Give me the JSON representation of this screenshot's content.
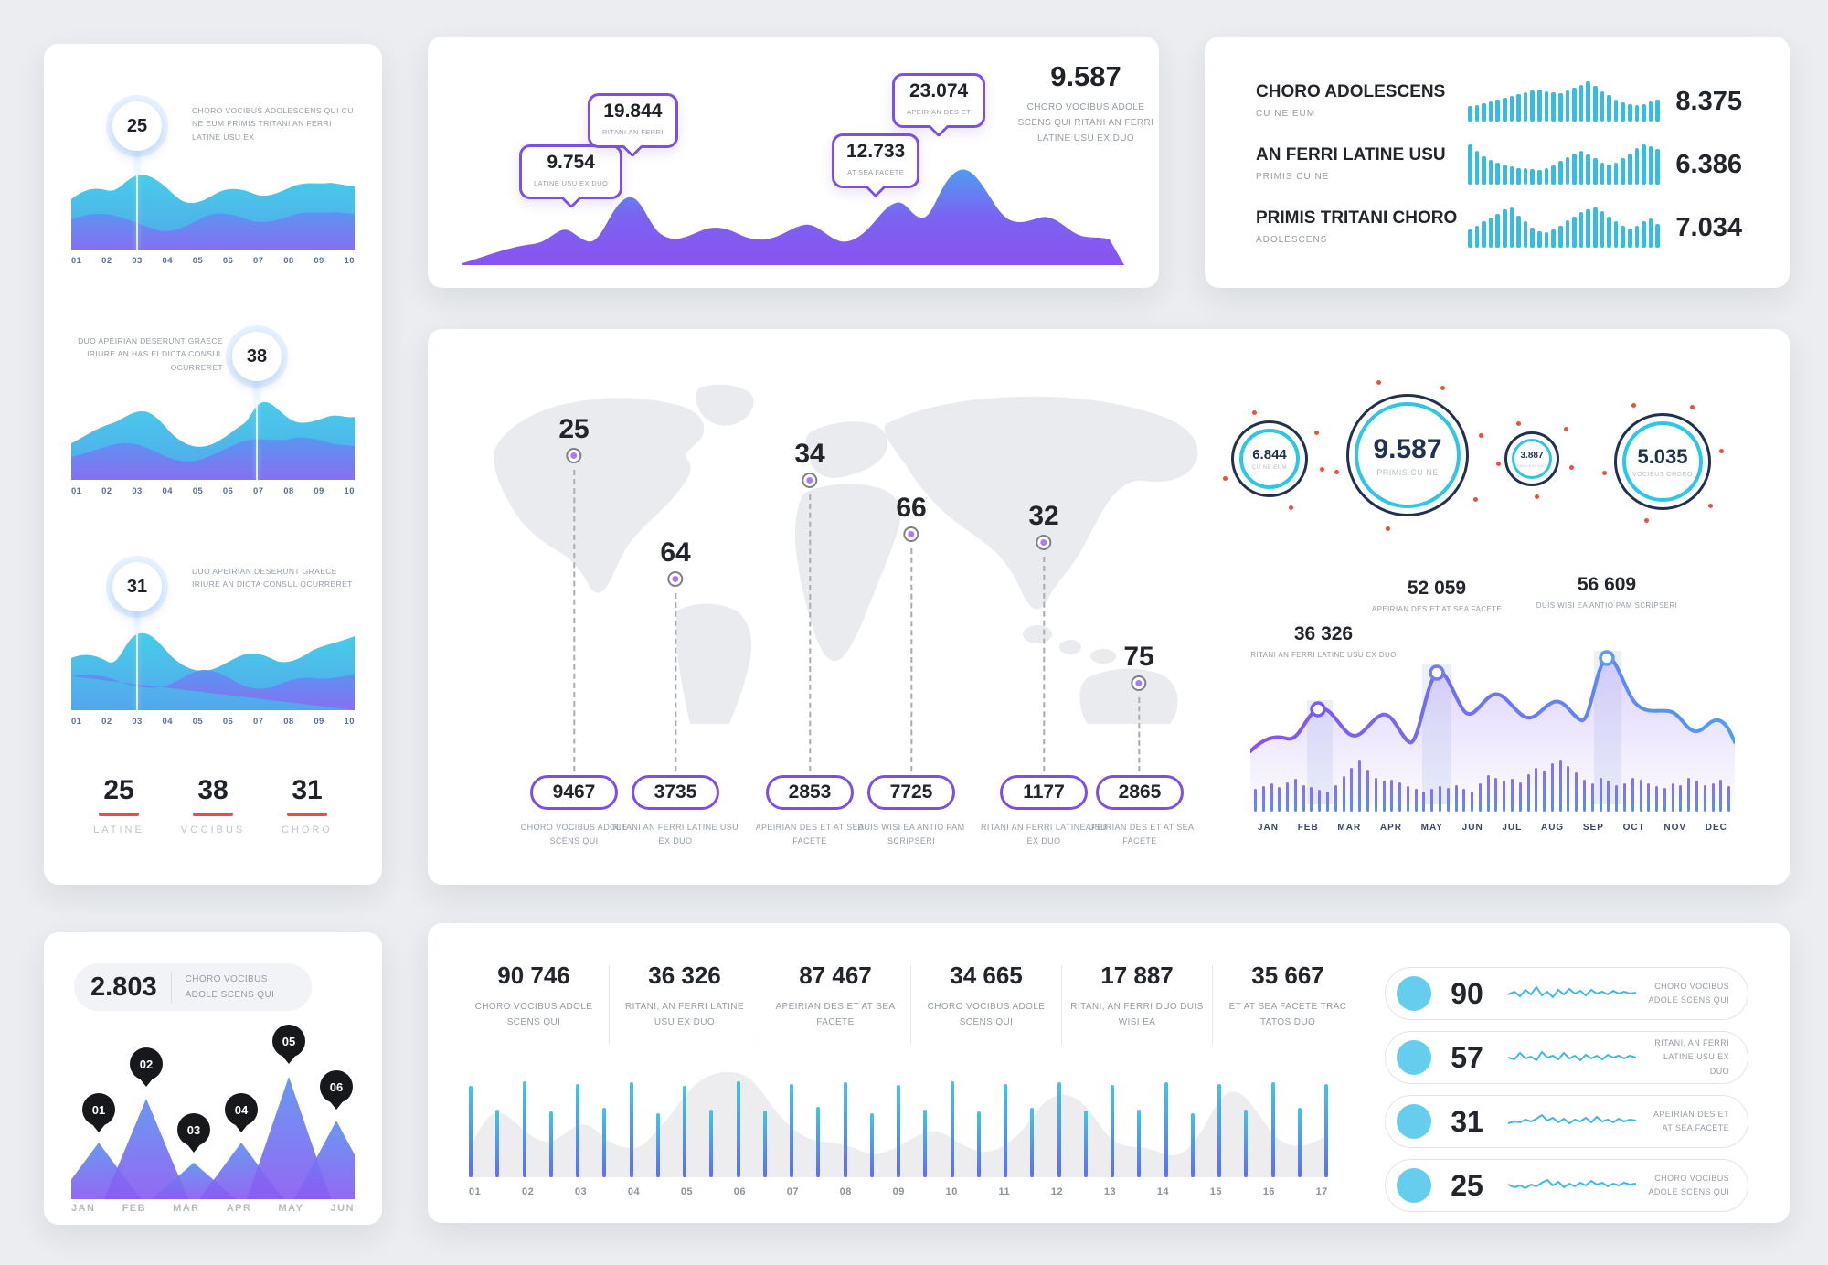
{
  "colors": {
    "cyan": "#35bcde",
    "purple": "#8b5cf6",
    "blue": "#4f9cf7",
    "red": "#ef4a45",
    "navy": "#223150",
    "light_blue": "#66cdee",
    "map_gray": "#e9ebee"
  },
  "left_panel": {
    "charts": [
      {
        "value": "25",
        "caption": "CHORO VOCIBUS ADOLESCENS QUI CU NE EUM PRIMIS TRITANI AN FERRI LATINE USU EX",
        "x_labels": [
          "01",
          "02",
          "03",
          "04",
          "05",
          "06",
          "07",
          "08",
          "09",
          "10"
        ]
      },
      {
        "value": "38",
        "caption": "DUO APEIRIAN DESERUNT GRAECE IRIURE AN HAS EI DICTA CONSUL OCURRERET",
        "x_labels": [
          "01",
          "02",
          "03",
          "04",
          "05",
          "06",
          "07",
          "08",
          "09",
          "10"
        ]
      },
      {
        "value": "31",
        "caption": "DUO APEIRIAN DESERUNT GRAECE IRIURE AN DICTA CONSUL OCURRERET",
        "x_labels": [
          "01",
          "02",
          "03",
          "04",
          "05",
          "06",
          "07",
          "08",
          "09",
          "10"
        ]
      }
    ],
    "summary": [
      {
        "value": "25",
        "label": "LATINE"
      },
      {
        "value": "38",
        "label": "VOCIBUS"
      },
      {
        "value": "31",
        "label": "CHORO"
      }
    ]
  },
  "wave_panel": {
    "callouts": [
      {
        "value": "9.754",
        "label": "LATINE USU EX DUO"
      },
      {
        "value": "19.844",
        "label": "RITANI AN FERRI"
      },
      {
        "value": "12.733",
        "label": "AT SEA FACETE"
      },
      {
        "value": "23.074",
        "label": "APEIRIAN DES ET"
      }
    ],
    "headline": {
      "value": "9.587",
      "caption": "CHORO VOCIBUS ADOLE SCENS QUI RITANI AN FERRI LATINE USU EX DUO"
    }
  },
  "list_panel": {
    "rows": [
      {
        "title": "CHORO ADOLESCENS",
        "subtitle": "CU NE EUM",
        "value": "8.375",
        "bars": [
          0.38,
          0.42,
          0.46,
          0.5,
          0.55,
          0.6,
          0.63,
          0.68,
          0.72,
          0.78,
          0.8,
          0.76,
          0.73,
          0.7,
          0.78,
          0.85,
          0.92,
          1,
          0.88,
          0.75,
          0.65,
          0.55,
          0.48,
          0.44,
          0.4,
          0.44,
          0.5,
          0.55
        ]
      },
      {
        "title": "AN FERRI LATINE USU",
        "subtitle": "PRIMIS CU NE",
        "value": "6.386",
        "bars": [
          1,
          0.85,
          0.7,
          0.62,
          0.55,
          0.5,
          0.45,
          0.42,
          0.4,
          0.38,
          0.36,
          0.4,
          0.48,
          0.58,
          0.68,
          0.78,
          0.85,
          0.75,
          0.65,
          0.55,
          0.5,
          0.55,
          0.65,
          0.78,
          0.9,
          1,
          0.95,
          0.88
        ]
      },
      {
        "title": "PRIMIS TRITANI CHORO",
        "subtitle": "ADOLESCENS",
        "value": "7.034",
        "bars": [
          0.45,
          0.55,
          0.65,
          0.75,
          0.85,
          0.95,
          1,
          0.8,
          0.65,
          0.5,
          0.42,
          0.38,
          0.45,
          0.55,
          0.68,
          0.78,
          0.88,
          0.95,
          1,
          0.9,
          0.78,
          0.65,
          0.55,
          0.48,
          0.55,
          0.65,
          0.72,
          0.6
        ]
      }
    ]
  },
  "map_panel": {
    "markers": [
      {
        "value": "25"
      },
      {
        "value": "64"
      },
      {
        "value": "34"
      },
      {
        "value": "66"
      },
      {
        "value": "32"
      },
      {
        "value": "75"
      }
    ],
    "pills": [
      {
        "value": "9467",
        "caption": "CHORO VOCIBUS ADOLE SCENS QUI"
      },
      {
        "value": "3735",
        "caption": "RITANI AN FERRI LATINE USU EX DUO"
      },
      {
        "value": "2853",
        "caption": "APEIRIAN DES ET AT SEA FACETE"
      },
      {
        "value": "7725",
        "caption": "DUIS WISI EA ANTIO PAM SCRIPSERI"
      },
      {
        "value": "1177",
        "caption": "RITANI AN FERRI LATINE USU EX DUO"
      },
      {
        "value": "2865",
        "caption": "APEIRIAN DES ET AT SEA FACETE"
      }
    ],
    "gauges": [
      {
        "value": "6.844",
        "label": "CU NE EUM"
      },
      {
        "value": "9.587",
        "label": "PRIMIS CU NE"
      },
      {
        "value": "3.887",
        "label": "ADOLESCENS"
      },
      {
        "value": "5.035",
        "label": "VOCIBUS CHORO"
      }
    ],
    "line_chart": {
      "callouts": [
        {
          "value": "36 326",
          "caption": "RITANI AN FERRI LATINE USU EX DUO"
        },
        {
          "value": "52 059",
          "caption": "APEIRIAN DES ET AT SEA FACETE"
        },
        {
          "value": "56 609",
          "caption": "DUIS WISI EA ANTIO PAM SCRIPSERI"
        }
      ],
      "months": [
        "JAN",
        "FEB",
        "MAR",
        "APR",
        "MAY",
        "JUN",
        "JUL",
        "AUG",
        "SEP",
        "OCT",
        "NOV",
        "DEC"
      ],
      "bars": [
        0.45,
        0.5,
        0.55,
        0.48,
        0.58,
        0.65,
        0.52,
        0.48,
        0.42,
        0.4,
        0.52,
        0.7,
        0.85,
        1,
        0.82,
        0.66,
        0.6,
        0.63,
        0.57,
        0.5,
        0.45,
        0.4,
        0.44,
        0.5,
        0.46,
        0.52,
        0.44,
        0.4,
        0.56,
        0.72,
        0.66,
        0.6,
        0.64,
        0.58,
        0.74,
        0.86,
        0.8,
        0.94,
        1,
        0.9,
        0.76,
        0.62,
        0.55,
        0.66,
        0.6,
        0.52,
        0.56,
        0.66,
        0.62,
        0.56,
        0.5,
        0.46,
        0.56,
        0.52,
        0.66,
        0.6,
        0.52,
        0.56,
        0.62,
        0.5
      ]
    }
  },
  "peaks_panel": {
    "badge": {
      "value": "2.803",
      "caption": "CHORO VOCIBUS ADOLE SCENS QUI"
    },
    "pins": [
      "01",
      "02",
      "03",
      "04",
      "05",
      "06"
    ],
    "months": [
      "JAN",
      "FEB",
      "MAR",
      "APR",
      "MAY",
      "JUN"
    ]
  },
  "stats_panel": {
    "stats": [
      {
        "value": "90 746",
        "caption": "CHORO VOCIBUS ADOLE SCENS QUI"
      },
      {
        "value": "36 326",
        "caption": "RITANI, AN FERRI LATINE USU EX DUO"
      },
      {
        "value": "87 467",
        "caption": "APEIRIAN DES ET AT SEA FACETE"
      },
      {
        "value": "34 665",
        "caption": "CHORO VOCIBUS ADOLE SCENS QUI"
      },
      {
        "value": "17 887",
        "caption": "RITANI, AN FERRI DUO DUIS WISI EA"
      },
      {
        "value": "35 667",
        "caption": "ET AT SEA FACETE TRAC TATOS DUO"
      }
    ],
    "x_labels": [
      "01",
      "02",
      "03",
      "04",
      "05",
      "06",
      "07",
      "08",
      "09",
      "10",
      "11",
      "12",
      "13",
      "14",
      "15",
      "16",
      "17"
    ],
    "bars": [
      0.78,
      0.58,
      0.82,
      0.56,
      0.8,
      0.59,
      0.81,
      0.55,
      0.78,
      0.58,
      0.82,
      0.57,
      0.8,
      0.6,
      0.81,
      0.55,
      0.79,
      0.58,
      0.82,
      0.56,
      0.8,
      0.59,
      0.81,
      0.57,
      0.79,
      0.58,
      0.81,
      0.55,
      0.8,
      0.58,
      0.81,
      0.59,
      0.8
    ]
  },
  "kpi_rows": [
    {
      "value": "90",
      "caption": "CHORO VOCIBUS ADOLE SCENS QUI"
    },
    {
      "value": "57",
      "caption": "RITANI, AN FERRI LATINE USU EX DUO"
    },
    {
      "value": "31",
      "caption": "APEIRIAN DES ET AT SEA FACETE"
    },
    {
      "value": "25",
      "caption": "CHORO VOCIBUS ADOLE SCENS QUI"
    }
  ],
  "chart_data": [
    {
      "type": "area",
      "panel": "left-column",
      "x": [
        "01",
        "02",
        "03",
        "04",
        "05",
        "06",
        "07",
        "08",
        "09",
        "10"
      ],
      "series": [
        {
          "name": "chart-1",
          "peak_x": "03",
          "peak_value": 25
        },
        {
          "name": "chart-2",
          "peak_x": "07",
          "peak_value": 38
        },
        {
          "name": "chart-3",
          "peak_x": "03",
          "peak_value": 31
        }
      ],
      "summary": {
        "LATINE": 25,
        "VOCIBUS": 38,
        "CHORO": 31
      }
    },
    {
      "type": "area",
      "panel": "wave",
      "total": 9.587,
      "points": [
        {
          "label": "LATINE USU EX DUO",
          "value": 9.754
        },
        {
          "label": "RITANI AN FERRI",
          "value": 19.844
        },
        {
          "label": "AT SEA FACETE",
          "value": 12.733
        },
        {
          "label": "APEIRIAN DES ET",
          "value": 23.074
        }
      ]
    },
    {
      "type": "bar",
      "panel": "kpi-list",
      "rows": [
        {
          "name": "CHORO ADOLESCENS",
          "value": 8.375
        },
        {
          "name": "AN FERRI LATINE USU",
          "value": 6.386
        },
        {
          "name": "PRIMIS TRITANI CHORO",
          "value": 7.034
        }
      ]
    },
    {
      "type": "map",
      "panel": "world",
      "points": [
        {
          "region": "north-america",
          "value": 25,
          "pill": 9467
        },
        {
          "region": "south-america",
          "value": 64,
          "pill": 3735
        },
        {
          "region": "europe",
          "value": 34,
          "pill": 2853
        },
        {
          "region": "middle-east",
          "value": 66,
          "pill": 7725
        },
        {
          "region": "asia",
          "value": 32,
          "pill": 1177
        },
        {
          "region": "australia",
          "value": 75,
          "pill": 2865
        }
      ]
    },
    {
      "type": "gauge",
      "panel": "rings",
      "values": [
        6.844,
        9.587,
        3.887,
        5.035
      ]
    },
    {
      "type": "line",
      "panel": "annual",
      "x": [
        "JAN",
        "FEB",
        "MAR",
        "APR",
        "MAY",
        "JUN",
        "JUL",
        "AUG",
        "SEP",
        "OCT",
        "NOV",
        "DEC"
      ],
      "peaks": [
        {
          "month": "FEB",
          "value": 36326
        },
        {
          "month": "MAY",
          "value": 52059
        },
        {
          "month": "SEP",
          "value": 56609
        }
      ]
    },
    {
      "type": "area",
      "panel": "peaks",
      "x": [
        "JAN",
        "FEB",
        "MAR",
        "APR",
        "MAY",
        "JUN"
      ],
      "pins": [
        "01",
        "02",
        "03",
        "04",
        "05",
        "06"
      ],
      "badge": 2.803
    },
    {
      "type": "bar",
      "panel": "stats",
      "x": [
        "01",
        "02",
        "03",
        "04",
        "05",
        "06",
        "07",
        "08",
        "09",
        "10",
        "11",
        "12",
        "13",
        "14",
        "15",
        "16",
        "17"
      ],
      "stats": [
        90746,
        36326,
        87467,
        34665,
        17887,
        35667
      ]
    },
    {
      "type": "bar",
      "panel": "kpi-rows",
      "values": [
        90,
        57,
        31,
        25
      ]
    }
  ]
}
